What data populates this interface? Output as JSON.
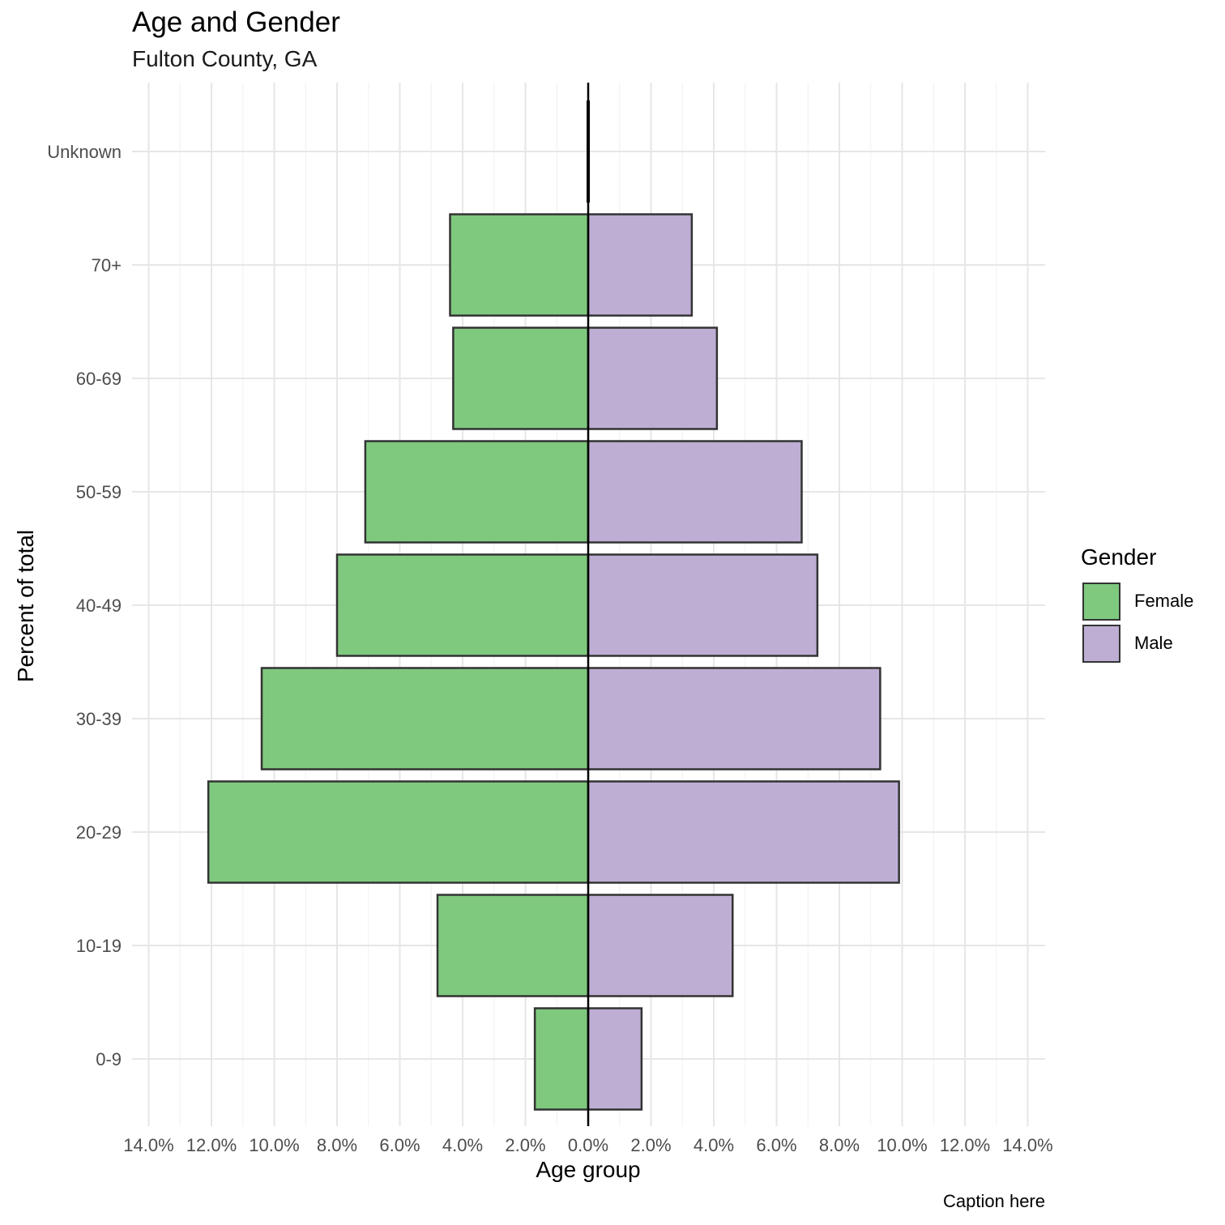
{
  "chart_data": {
    "type": "bar",
    "orientation": "horizontal-population-pyramid",
    "title": "Age and Gender",
    "subtitle": "Fulton County, GA",
    "xlabel": "Age group",
    "ylabel": "Percent of total",
    "caption": "Caption here",
    "categories": [
      "0-9",
      "10-19",
      "20-29",
      "30-39",
      "40-49",
      "50-59",
      "60-69",
      "70+",
      "Unknown"
    ],
    "series": [
      {
        "name": "Female",
        "color": "#7fc97f",
        "direction": "left",
        "values": [
          1.7,
          4.8,
          12.1,
          10.4,
          8.0,
          7.1,
          4.3,
          4.4,
          0.05
        ]
      },
      {
        "name": "Male",
        "color": "#beaed4",
        "direction": "right",
        "values": [
          1.7,
          4.6,
          9.9,
          9.3,
          7.3,
          6.8,
          4.1,
          3.3,
          0.05
        ]
      }
    ],
    "xlim": [
      -14,
      14
    ],
    "xticks": [
      -14,
      -12,
      -10,
      -8,
      -6,
      -4,
      -2,
      0,
      2,
      4,
      6,
      8,
      10,
      12,
      14
    ],
    "xtick_labels": [
      "14.0%",
      "12.0%",
      "10.0%",
      "8.0%",
      "6.0%",
      "4.0%",
      "2.0%",
      "0.0%",
      "2.0%",
      "4.0%",
      "6.0%",
      "8.0%",
      "10.0%",
      "12.0%",
      "14.0%"
    ],
    "grid": true,
    "zero_line": true,
    "bar_outline_color": "#333333",
    "legend_title": "Gender",
    "legend_position": "right"
  }
}
